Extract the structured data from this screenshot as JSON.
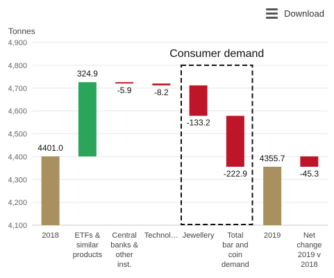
{
  "toolbar": {
    "download_label": "Download",
    "menu_icon": "hamburger-menu-icon"
  },
  "chart_data": {
    "type": "bar",
    "subtype": "waterfall",
    "ylabel": "Tonnes",
    "ylim": [
      4100,
      4900
    ],
    "ytick_step": 100,
    "yticks": [
      "4,100",
      "4,200",
      "4,300",
      "4,400",
      "4,500",
      "4,600",
      "4,700",
      "4,800",
      "4,900"
    ],
    "grid": true,
    "colors": {
      "total": "#a8915e",
      "increase": "#2ba55a",
      "decrease": "#be1529",
      "grid": "#e6e6e6"
    },
    "categories": [
      [
        "2018"
      ],
      [
        "ETFs &",
        "similar",
        "products"
      ],
      [
        "Central",
        "banks &",
        "other",
        "inst."
      ],
      [
        "Technol…"
      ],
      [
        "Jewellery"
      ],
      [
        "Total",
        "bar and",
        "coin",
        "demand"
      ],
      [
        "2019"
      ],
      [
        "Net",
        "change",
        "2019 v",
        "2018"
      ]
    ],
    "bars": [
      {
        "kind": "total",
        "low": 4100,
        "high": 4401.0,
        "label": "4401.0",
        "label_pos": "above"
      },
      {
        "kind": "increase",
        "low": 4401.0,
        "high": 4725.9,
        "label": "324.9",
        "label_pos": "above"
      },
      {
        "kind": "decrease",
        "low": 4720.0,
        "high": 4725.9,
        "label": "-5.9",
        "label_pos": "below"
      },
      {
        "kind": "decrease",
        "low": 4711.8,
        "high": 4720.0,
        "label": "-8.2",
        "label_pos": "below"
      },
      {
        "kind": "decrease",
        "low": 4578.6,
        "high": 4711.8,
        "label": "-133.2",
        "label_pos": "below"
      },
      {
        "kind": "decrease",
        "low": 4355.7,
        "high": 4578.6,
        "label": "-222.9",
        "label_pos": "below"
      },
      {
        "kind": "total",
        "low": 4100,
        "high": 4355.7,
        "label": "4355.7",
        "label_pos": "above"
      },
      {
        "kind": "decrease",
        "low": 4355.7,
        "high": 4401.0,
        "label": "-45.3",
        "label_pos": "below"
      }
    ],
    "annotations": [
      {
        "text": "Consumer demand",
        "style": "dashed-box",
        "from_category": 4,
        "to_category": 5
      }
    ]
  }
}
